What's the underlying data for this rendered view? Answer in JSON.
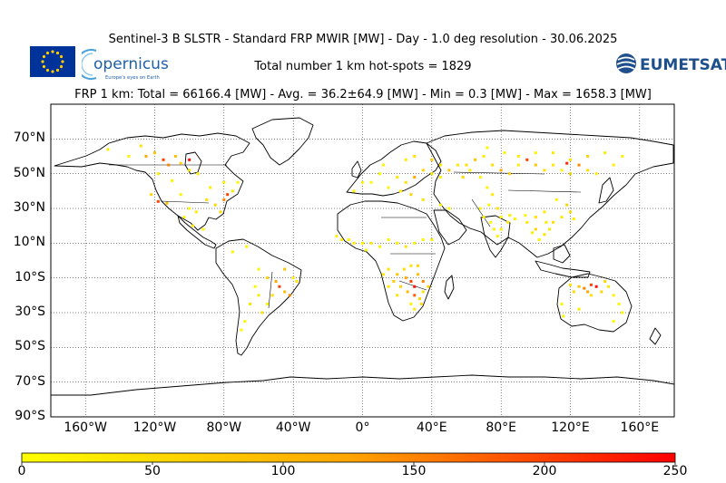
{
  "header": {
    "title": "Sentinel-3 B SLSTR - Standard FRP MWIR [MW] - Day - 1.0 deg resolution - 30.06.2025",
    "hotspots": "Total number 1 km hot-spots = 1829",
    "frp_stats": "FRP 1 km: Total = 66166.4 [MW] - Avg. = 36.2±64.9 [MW] - Min = 0.3 [MW] - Max = 1658.3 [MW]"
  },
  "logos": {
    "copernicus": "opernicus",
    "copernicus_tagline": "Europe's eyes on Earth",
    "eumetsat": "EUMETSAT",
    "eu_flag_icon": "eu-flag",
    "eumetsat_icon": "eumetsat-globe"
  },
  "axes": {
    "lat_ticks": [
      "70°N",
      "50°N",
      "30°N",
      "10°N",
      "10°S",
      "30°S",
      "50°S",
      "70°S",
      "90°S"
    ],
    "lon_ticks": [
      "160°W",
      "120°W",
      "80°W",
      "40°W",
      "0°",
      "40°E",
      "80°E",
      "120°E",
      "160°E"
    ]
  },
  "colorbar": {
    "ticks": [
      "0",
      "50",
      "100",
      "150",
      "200",
      "250"
    ],
    "colors": [
      "#ffff00",
      "#ff0000"
    ]
  },
  "chart_data": {
    "type": "scatter",
    "projection": "plate-carree",
    "xlim": [
      -180,
      180
    ],
    "ylim": [
      -90,
      90
    ],
    "grid": true,
    "color_scale": [
      0,
      250
    ],
    "series": [
      {
        "values_note": "",
        "points": [
          [
            -128,
            66,
            40
          ],
          [
            -120,
            62,
            80
          ],
          [
            -115,
            58,
            200
          ],
          [
            -112,
            55,
            150
          ],
          [
            -105,
            56,
            60
          ],
          [
            -100,
            52,
            30
          ],
          [
            -95,
            50,
            20
          ],
          [
            -125,
            60,
            120
          ],
          [
            -118,
            50,
            30
          ],
          [
            -110,
            46,
            15
          ],
          [
            -122,
            38,
            60
          ],
          [
            -118,
            34,
            200
          ],
          [
            -113,
            33,
            80
          ],
          [
            -105,
            38,
            20
          ],
          [
            -100,
            30,
            15
          ],
          [
            -98,
            20,
            30
          ],
          [
            -90,
            35,
            40
          ],
          [
            -85,
            32,
            60
          ],
          [
            -82,
            28,
            50
          ],
          [
            -80,
            35,
            150
          ],
          [
            -78,
            38,
            200
          ],
          [
            -75,
            40,
            30
          ],
          [
            -88,
            42,
            20
          ],
          [
            -92,
            18,
            15
          ],
          [
            -100,
            58,
            240
          ],
          [
            -108,
            60,
            90
          ],
          [
            -135,
            60,
            20
          ],
          [
            -147,
            64,
            30
          ],
          [
            -80,
            45,
            20
          ],
          [
            -72,
            45,
            10
          ],
          [
            -96,
            28,
            30
          ],
          [
            -103,
            25,
            20
          ],
          [
            -60,
            -5,
            15
          ],
          [
            -55,
            -10,
            60
          ],
          [
            -50,
            -12,
            120
          ],
          [
            -48,
            -15,
            200
          ],
          [
            -45,
            -18,
            90
          ],
          [
            -42,
            -20,
            150
          ],
          [
            -40,
            -10,
            30
          ],
          [
            -52,
            -20,
            40
          ],
          [
            -55,
            -25,
            20
          ],
          [
            -62,
            -15,
            10
          ],
          [
            -65,
            -25,
            40
          ],
          [
            -68,
            -35,
            15
          ],
          [
            -70,
            -40,
            10
          ],
          [
            -75,
            5,
            20
          ],
          [
            -67,
            8,
            15
          ],
          [
            -58,
            -30,
            30
          ],
          [
            -45,
            -5,
            80
          ],
          [
            -38,
            -12,
            40
          ],
          [
            -60,
            -20,
            30
          ],
          [
            10,
            50,
            20
          ],
          [
            20,
            48,
            30
          ],
          [
            25,
            45,
            40
          ],
          [
            30,
            48,
            120
          ],
          [
            35,
            52,
            60
          ],
          [
            40,
            50,
            30
          ],
          [
            45,
            48,
            20
          ],
          [
            15,
            42,
            15
          ],
          [
            22,
            40,
            30
          ],
          [
            28,
            38,
            60
          ],
          [
            35,
            35,
            40
          ],
          [
            45,
            32,
            20
          ],
          [
            50,
            30,
            15
          ],
          [
            -5,
            40,
            20
          ],
          [
            0,
            45,
            10
          ],
          [
            5,
            45,
            10
          ],
          [
            12,
            55,
            15
          ],
          [
            25,
            58,
            30
          ],
          [
            30,
            60,
            40
          ],
          [
            40,
            58,
            80
          ],
          [
            -8,
            12,
            15
          ],
          [
            -5,
            10,
            30
          ],
          [
            0,
            10,
            20
          ],
          [
            5,
            10,
            25
          ],
          [
            10,
            8,
            15
          ],
          [
            15,
            12,
            20
          ],
          [
            20,
            10,
            30
          ],
          [
            25,
            8,
            40
          ],
          [
            30,
            10,
            15
          ],
          [
            35,
            12,
            20
          ],
          [
            40,
            12,
            25
          ],
          [
            -12,
            12,
            30
          ],
          [
            -15,
            14,
            20
          ],
          [
            2,
            6,
            15
          ],
          [
            15,
            -5,
            40
          ],
          [
            20,
            -8,
            80
          ],
          [
            25,
            -10,
            120
          ],
          [
            28,
            -12,
            200
          ],
          [
            30,
            -15,
            240
          ],
          [
            32,
            -8,
            90
          ],
          [
            35,
            -12,
            150
          ],
          [
            22,
            -15,
            60
          ],
          [
            26,
            -18,
            100
          ],
          [
            30,
            -20,
            180
          ],
          [
            33,
            -22,
            60
          ],
          [
            35,
            -18,
            40
          ],
          [
            18,
            -12,
            70
          ],
          [
            12,
            -8,
            30
          ],
          [
            24,
            -5,
            50
          ],
          [
            28,
            -25,
            20
          ],
          [
            30,
            -28,
            30
          ],
          [
            38,
            -15,
            60
          ],
          [
            34,
            -25,
            50
          ],
          [
            20,
            -20,
            40
          ],
          [
            15,
            -15,
            30
          ],
          [
            28,
            -3,
            40
          ],
          [
            32,
            -3,
            60
          ],
          [
            60,
            55,
            40
          ],
          [
            65,
            58,
            80
          ],
          [
            70,
            60,
            30
          ],
          [
            75,
            55,
            50
          ],
          [
            80,
            52,
            120
          ],
          [
            85,
            50,
            60
          ],
          [
            90,
            55,
            30
          ],
          [
            95,
            58,
            200
          ],
          [
            100,
            55,
            80
          ],
          [
            105,
            52,
            40
          ],
          [
            110,
            55,
            30
          ],
          [
            115,
            52,
            20
          ],
          [
            120,
            50,
            60
          ],
          [
            125,
            55,
            150
          ],
          [
            130,
            52,
            40
          ],
          [
            135,
            50,
            30
          ],
          [
            62,
            52,
            20
          ],
          [
            68,
            48,
            15
          ],
          [
            72,
            42,
            20
          ],
          [
            75,
            38,
            30
          ],
          [
            78,
            30,
            40
          ],
          [
            80,
            25,
            20
          ],
          [
            85,
            26,
            30
          ],
          [
            88,
            24,
            15
          ],
          [
            90,
            60,
            30
          ],
          [
            82,
            62,
            20
          ],
          [
            72,
            65,
            15
          ],
          [
            100,
            62,
            20
          ],
          [
            110,
            62,
            30
          ],
          [
            120,
            58,
            40
          ],
          [
            130,
            60,
            60
          ],
          [
            140,
            62,
            30
          ],
          [
            145,
            55,
            20
          ],
          [
            150,
            60,
            15
          ],
          [
            118,
            56,
            220
          ],
          [
            58,
            48,
            50
          ],
          [
            50,
            52,
            80
          ],
          [
            45,
            55,
            40
          ],
          [
            55,
            55,
            30
          ],
          [
            95,
            22,
            30
          ],
          [
            100,
            18,
            60
          ],
          [
            105,
            15,
            40
          ],
          [
            108,
            18,
            30
          ],
          [
            102,
            12,
            20
          ],
          [
            110,
            22,
            40
          ],
          [
            115,
            25,
            30
          ],
          [
            120,
            28,
            40
          ],
          [
            118,
            32,
            60
          ],
          [
            112,
            35,
            20
          ],
          [
            105,
            28,
            30
          ],
          [
            100,
            25,
            40
          ],
          [
            122,
            24,
            20
          ],
          [
            98,
            16,
            25
          ],
          [
            106,
            22,
            30
          ],
          [
            94,
            26,
            20
          ],
          [
            70,
            25,
            20
          ],
          [
            74,
            22,
            15
          ],
          [
            76,
            18,
            20
          ],
          [
            80,
            18,
            25
          ],
          [
            84,
            22,
            30
          ],
          [
            78,
            14,
            15
          ],
          [
            73,
            32,
            20
          ],
          [
            68,
            30,
            15
          ],
          [
            120,
            -14,
            40
          ],
          [
            125,
            -15,
            80
          ],
          [
            128,
            -16,
            150
          ],
          [
            132,
            -14,
            200
          ],
          [
            135,
            -15,
            240
          ],
          [
            130,
            -18,
            120
          ],
          [
            138,
            -18,
            60
          ],
          [
            142,
            -15,
            30
          ],
          [
            145,
            -20,
            20
          ],
          [
            122,
            -18,
            50
          ],
          [
            132,
            -20,
            40
          ],
          [
            115,
            -25,
            20
          ],
          [
            125,
            -28,
            30
          ],
          [
            140,
            -12,
            60
          ],
          [
            148,
            -25,
            20
          ],
          [
            150,
            -30,
            15
          ],
          [
            145,
            -35,
            10
          ],
          [
            116,
            -32,
            15
          ]
        ]
      }
    ]
  }
}
